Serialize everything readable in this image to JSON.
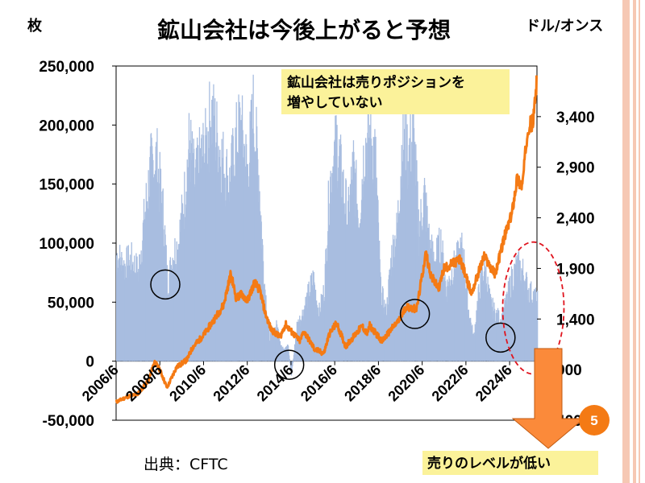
{
  "slide": {
    "title": "鉱山会社は今後上がると予想",
    "source": "出典：CFTC",
    "page_number": "5",
    "callout_text_line1": "鉱山会社は売りポジションを",
    "callout_text_line2": "増やしていない",
    "bottom_note": "売りのレベルが低い",
    "colors": {
      "bars": "#a8bde0",
      "line": "#f47a14",
      "callout_bg": "#fbf29a",
      "arrow": "#fb8a3a",
      "badge": "#f47a14",
      "stripes": "#f6c8b4"
    }
  },
  "chart_data": {
    "type": "bar+line",
    "left_axis_unit": "枚",
    "right_axis_unit": "ドル/オンス",
    "left_axis": {
      "min": -50000,
      "max": 250000,
      "ticks": [
        250000,
        200000,
        150000,
        100000,
        50000,
        0,
        -50000
      ],
      "tick_labels": [
        "250,000",
        "200,000",
        "150,000",
        "100,000",
        "50,000",
        "0",
        "-50,000"
      ]
    },
    "right_axis": {
      "min": 400,
      "max": 3900,
      "ticks": [
        3400,
        2900,
        2400,
        1900,
        1400,
        900,
        400
      ],
      "tick_labels": [
        "3,400",
        "2,900",
        "2,400",
        "1,900",
        "1,400",
        "900",
        "400"
      ]
    },
    "x_tick_labels": [
      "2006/6",
      "2008/6",
      "2010/6",
      "2012/6",
      "2014/6",
      "2016/6",
      "2018/6",
      "2020/6",
      "2022/6",
      "2024/6"
    ],
    "x_range": [
      "2006/6",
      "2025/9"
    ],
    "series": [
      {
        "axis": "left",
        "kind": "bar",
        "points": [
          [
            "2006/6",
            90000
          ],
          [
            "2006/10",
            80000
          ],
          [
            "2007/2",
            85000
          ],
          [
            "2007/6",
            75000
          ],
          [
            "2007/10",
            130000
          ],
          [
            "2008/1",
            165000
          ],
          [
            "2008/4",
            170000
          ],
          [
            "2008/8",
            120000
          ],
          [
            "2008/10",
            65000
          ],
          [
            "2009/1",
            90000
          ],
          [
            "2009/4",
            100000
          ],
          [
            "2009/7",
            135000
          ],
          [
            "2009/10",
            185000
          ],
          [
            "2010/1",
            150000
          ],
          [
            "2010/4",
            170000
          ],
          [
            "2010/7",
            180000
          ],
          [
            "2010/10",
            210000
          ],
          [
            "2011/1",
            190000
          ],
          [
            "2011/4",
            170000
          ],
          [
            "2011/8",
            150000
          ],
          [
            "2011/11",
            180000
          ],
          [
            "2012/2",
            200000
          ],
          [
            "2012/6",
            160000
          ],
          [
            "2012/9",
            210000
          ],
          [
            "2012/12",
            160000
          ],
          [
            "2013/3",
            70000
          ],
          [
            "2013/6",
            20000
          ],
          [
            "2013/10",
            30000
          ],
          [
            "2014/1",
            10000
          ],
          [
            "2014/4",
            15000
          ],
          [
            "2014/6",
            -12000
          ],
          [
            "2014/9",
            30000
          ],
          [
            "2014/12",
            40000
          ],
          [
            "2015/3",
            55000
          ],
          [
            "2015/6",
            70000
          ],
          [
            "2015/9",
            40000
          ],
          [
            "2015/12",
            60000
          ],
          [
            "2016/3",
            150000
          ],
          [
            "2016/7",
            185000
          ],
          [
            "2016/10",
            150000
          ],
          [
            "2017/1",
            120000
          ],
          [
            "2017/4",
            165000
          ],
          [
            "2017/7",
            120000
          ],
          [
            "2017/10",
            180000
          ],
          [
            "2018/1",
            190000
          ],
          [
            "2018/4",
            175000
          ],
          [
            "2018/7",
            60000
          ],
          [
            "2018/10",
            40000
          ],
          [
            "2019/1",
            90000
          ],
          [
            "2019/4",
            110000
          ],
          [
            "2019/7",
            190000
          ],
          [
            "2019/10",
            175000
          ],
          [
            "2020/1",
            190000
          ],
          [
            "2020/4",
            110000
          ],
          [
            "2020/7",
            140000
          ],
          [
            "2020/10",
            95000
          ],
          [
            "2021/1",
            85000
          ],
          [
            "2021/4",
            100000
          ],
          [
            "2021/7",
            60000
          ],
          [
            "2021/10",
            75000
          ],
          [
            "2022/1",
            85000
          ],
          [
            "2022/4",
            95000
          ],
          [
            "2022/7",
            45000
          ],
          [
            "2022/10",
            20000
          ],
          [
            "2023/1",
            60000
          ],
          [
            "2023/4",
            80000
          ],
          [
            "2023/7",
            50000
          ],
          [
            "2023/10",
            40000
          ],
          [
            "2024/1",
            35000
          ],
          [
            "2024/4",
            50000
          ],
          [
            "2024/7",
            70000
          ],
          [
            "2024/10",
            80000
          ],
          [
            "2025/1",
            75000
          ],
          [
            "2025/4",
            60000
          ],
          [
            "2025/7",
            55000
          ],
          [
            "2025/9",
            50000
          ]
        ]
      },
      {
        "axis": "right",
        "kind": "line",
        "points": [
          [
            "2006/6",
            580
          ],
          [
            "2006/12",
            630
          ],
          [
            "2007/6",
            660
          ],
          [
            "2007/12",
            800
          ],
          [
            "2008/3",
            980
          ],
          [
            "2008/6",
            900
          ],
          [
            "2008/10",
            720
          ],
          [
            "2009/3",
            920
          ],
          [
            "2009/9",
            1000
          ],
          [
            "2009/12",
            1120
          ],
          [
            "2010/6",
            1240
          ],
          [
            "2010/12",
            1400
          ],
          [
            "2011/5",
            1540
          ],
          [
            "2011/9",
            1850
          ],
          [
            "2011/12",
            1600
          ],
          [
            "2012/3",
            1650
          ],
          [
            "2012/6",
            1580
          ],
          [
            "2012/10",
            1760
          ],
          [
            "2013/1",
            1680
          ],
          [
            "2013/4",
            1450
          ],
          [
            "2013/7",
            1300
          ],
          [
            "2013/12",
            1220
          ],
          [
            "2014/3",
            1350
          ],
          [
            "2014/6",
            1280
          ],
          [
            "2014/11",
            1180
          ],
          [
            "2015/1",
            1280
          ],
          [
            "2015/7",
            1100
          ],
          [
            "2015/12",
            1060
          ],
          [
            "2016/3",
            1250
          ],
          [
            "2016/7",
            1360
          ],
          [
            "2016/12",
            1130
          ],
          [
            "2017/9",
            1330
          ],
          [
            "2017/12",
            1250
          ],
          [
            "2018/1",
            1340
          ],
          [
            "2018/8",
            1180
          ],
          [
            "2019/2",
            1320
          ],
          [
            "2019/6",
            1400
          ],
          [
            "2019/9",
            1520
          ],
          [
            "2020/3",
            1500
          ],
          [
            "2020/5",
            1720
          ],
          [
            "2020/8",
            2050
          ],
          [
            "2020/11",
            1820
          ],
          [
            "2021/3",
            1700
          ],
          [
            "2021/6",
            1900
          ],
          [
            "2022/3",
            1990
          ],
          [
            "2022/9",
            1650
          ],
          [
            "2023/4",
            2020
          ],
          [
            "2023/10",
            1840
          ],
          [
            "2024/3",
            2200
          ],
          [
            "2024/7",
            2420
          ],
          [
            "2024/10",
            2780
          ],
          [
            "2025/1",
            2720
          ],
          [
            "2025/4",
            3300
          ],
          [
            "2025/7",
            3350
          ],
          [
            "2025/9",
            3800
          ]
        ]
      }
    ],
    "annotations": [
      {
        "date": "2008/9",
        "left_value": 65000,
        "shape": "circle"
      },
      {
        "date": "2014/5",
        "left_value": -3000,
        "shape": "circle"
      },
      {
        "date": "2020/2",
        "left_value": 40000,
        "shape": "circle"
      },
      {
        "date": "2024/1",
        "left_value": 20000,
        "shape": "circle"
      },
      {
        "date": "2025/7",
        "left_value": 45000,
        "shape": "dashed-ellipse"
      }
    ]
  }
}
